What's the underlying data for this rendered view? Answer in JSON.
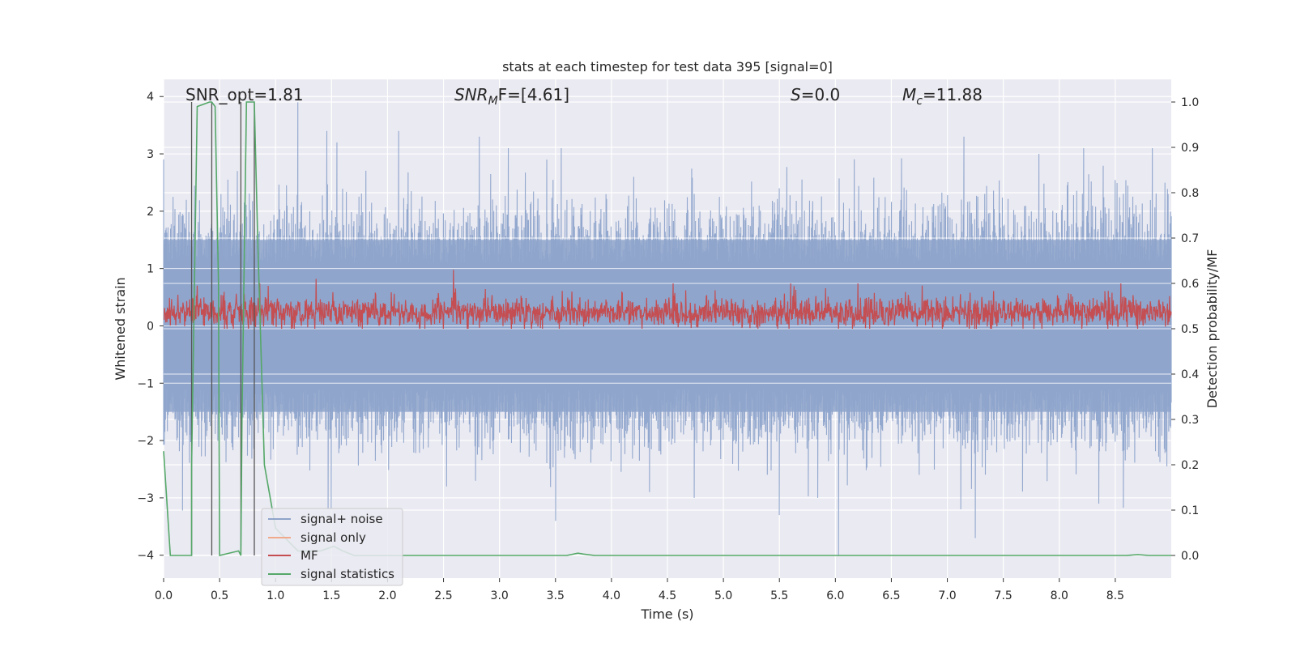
{
  "chart_data": {
    "type": "line",
    "title": "stats at each timestep for test data 395 [signal=0]",
    "xlabel": "Time (s)",
    "ylabel_left": "Whitened strain",
    "ylabel_right": "Detection probability/MF",
    "xlim": [
      0.0,
      9.0
    ],
    "ylim_left": [
      -4.4,
      4.3
    ],
    "ylim_right": [
      -0.05,
      1.05
    ],
    "x_ticks": [
      0.0,
      0.5,
      1.0,
      1.5,
      2.0,
      2.5,
      3.0,
      3.5,
      4.0,
      4.5,
      5.0,
      5.5,
      6.0,
      6.5,
      7.0,
      7.5,
      8.0,
      8.5
    ],
    "x_tick_labels": [
      "0.0",
      "0.5",
      "1.0",
      "1.5",
      "2.0",
      "2.5",
      "3.0",
      "3.5",
      "4.0",
      "4.5",
      "5.0",
      "5.5",
      "6.0",
      "6.5",
      "7.0",
      "7.5",
      "8.0",
      "8.5"
    ],
    "y_left_ticks": [
      4,
      3,
      2,
      1,
      0,
      -1,
      -2,
      -3,
      -4
    ],
    "y_left_tick_labels": [
      "4",
      "3",
      "2",
      "1",
      "0",
      "−1",
      "−2",
      "−3",
      "−4"
    ],
    "y_right_ticks": [
      1.0,
      0.9,
      0.8,
      0.7,
      0.6,
      0.5,
      0.4,
      0.3,
      0.2,
      0.1,
      0.0
    ],
    "y_right_tick_labels": [
      "1.0",
      "0.9",
      "0.8",
      "0.7",
      "0.6",
      "0.5",
      "0.4",
      "0.3",
      "0.2",
      "0.1",
      "0.0"
    ],
    "grid": true,
    "legend_position": "lower-left",
    "annotations": [
      {
        "id": "snr-opt",
        "text": "SNR_opt=1.81",
        "x": 0.2,
        "y": 4.0
      },
      {
        "id": "snr-mf",
        "base": "SNR",
        "sub": "M",
        "rest": "F=[4.61]",
        "x": 2.6,
        "y": 4.0
      },
      {
        "id": "s-stat",
        "base": "S",
        "rest": "=0.0",
        "x": 5.6,
        "y": 4.0
      },
      {
        "id": "mc",
        "base": "M",
        "sub": "c",
        "rest": "=11.88",
        "x": 6.6,
        "y": 4.0
      }
    ],
    "vertical_lines": [
      0.25,
      0.43,
      0.69,
      0.81
    ],
    "series": [
      {
        "name": "signal+ noise",
        "color": "#8ea4cb",
        "axis": "left",
        "noise_band": [
          -1.6,
          1.6
        ],
        "peaks": [
          {
            "x": 0.2,
            "y": 2.2
          },
          {
            "x": 0.66,
            "y": 2.7
          },
          {
            "x": 1.2,
            "y": 3.9
          },
          {
            "x": 1.46,
            "y": 3.4
          },
          {
            "x": 1.55,
            "y": 3.2
          },
          {
            "x": 2.1,
            "y": 3.4
          },
          {
            "x": 2.82,
            "y": 3.3
          },
          {
            "x": 3.08,
            "y": 3.1
          },
          {
            "x": 3.42,
            "y": 2.9
          },
          {
            "x": 3.55,
            "y": 3.1
          },
          {
            "x": 4.2,
            "y": 2.6
          },
          {
            "x": 5.5,
            "y": 2.4
          },
          {
            "x": 7.15,
            "y": 3.3
          },
          {
            "x": 7.82,
            "y": 3.0
          },
          {
            "x": 8.22,
            "y": 3.1
          },
          {
            "x": 8.83,
            "y": 3.1
          },
          {
            "x": 8.97,
            "y": 2.3
          }
        ],
        "troughs": [
          {
            "x": 0.12,
            "y": -2.0
          },
          {
            "x": 1.47,
            "y": -3.2
          },
          {
            "x": 3.5,
            "y": -3.4
          },
          {
            "x": 4.34,
            "y": -2.9
          },
          {
            "x": 4.74,
            "y": -3.0
          },
          {
            "x": 5.5,
            "y": -3.3
          },
          {
            "x": 5.84,
            "y": -3.0
          },
          {
            "x": 6.03,
            "y": -4.0
          },
          {
            "x": 7.12,
            "y": -3.2
          },
          {
            "x": 7.25,
            "y": -3.7
          },
          {
            "x": 8.35,
            "y": -3.1
          },
          {
            "x": 2.53,
            "y": -2.8
          },
          {
            "x": 6.75,
            "y": -2.6
          }
        ]
      },
      {
        "name": "signal only",
        "color": "#f0a98a",
        "axis": "left",
        "values": []
      },
      {
        "name": "MF",
        "color": "#c44e52",
        "axis": "right",
        "band": [
          0.5,
          0.58
        ],
        "peaks": [
          {
            "x": 2.59,
            "y": 0.63
          },
          {
            "x": 1.36,
            "y": 0.61
          },
          {
            "x": 0.86,
            "y": 0.6
          },
          {
            "x": 4.55,
            "y": 0.6
          },
          {
            "x": 5.6,
            "y": 0.6
          },
          {
            "x": 6.2,
            "y": 0.6
          },
          {
            "x": 8.55,
            "y": 0.6
          },
          {
            "x": 0.3,
            "y": 0.595
          }
        ]
      },
      {
        "name": "signal statistics",
        "color": "#55a868",
        "axis": "right",
        "x": [
          0.0,
          0.06,
          0.25,
          0.25,
          0.3,
          0.41,
          0.43,
          0.46,
          0.49,
          0.5,
          0.67,
          0.69,
          0.7,
          0.74,
          0.78,
          0.81,
          0.84,
          0.9,
          1.0,
          1.2,
          1.4,
          1.52,
          1.6,
          1.7,
          2.0,
          3.6,
          3.7,
          3.75,
          3.85,
          4.0,
          8.6,
          8.7,
          8.8,
          9.0
        ],
        "y": [
          0.23,
          0.0,
          0.0,
          0.2,
          0.99,
          1.0,
          1.0,
          0.99,
          0.6,
          0.0,
          0.01,
          0.0,
          0.3,
          1.0,
          1.0,
          1.0,
          0.7,
          0.2,
          0.06,
          0.01,
          0.01,
          0.02,
          0.01,
          0.0,
          0.0,
          0.0,
          0.005,
          0.003,
          0.0,
          0.0,
          0.0,
          0.002,
          0.0,
          0.0
        ]
      }
    ]
  }
}
